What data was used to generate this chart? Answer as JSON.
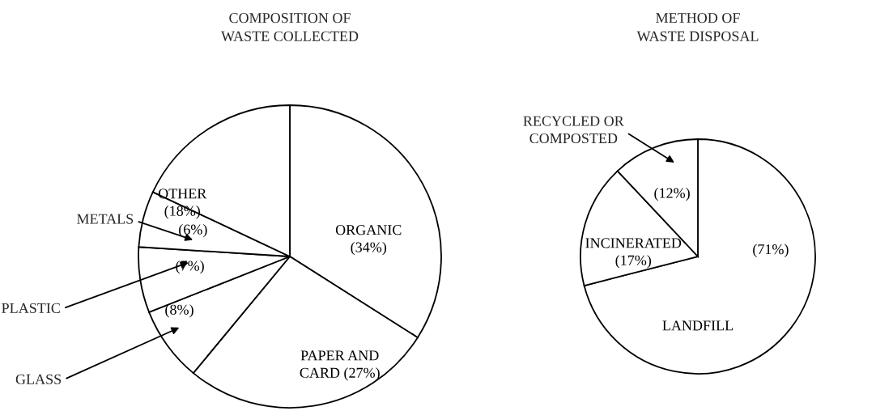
{
  "chart_data": [
    {
      "type": "pie",
      "title": "COMPOSITION OF\nWASTE COLLECTED",
      "categories": [
        "ORGANIC",
        "PAPER AND\nCARD",
        "GLASS",
        "PLASTIC",
        "METALS",
        "OTHER"
      ],
      "values": [
        34,
        27,
        8,
        7,
        6,
        18
      ],
      "colors": [
        "#ffffff",
        "#ffffff",
        "#ffffff",
        "#ffffff",
        "#ffffff",
        "#ffffff"
      ],
      "value_labels": [
        "(34%)",
        "(27%)",
        "(8%)",
        "(7%)",
        "(6%)",
        "(18%)"
      ]
    },
    {
      "type": "pie",
      "title": "METHOD OF\nWASTE DISPOSAL",
      "categories": [
        "LANDFILL",
        "INCINERATED",
        "RECYCLED OR\nCOMPOSTED"
      ],
      "values": [
        71,
        17,
        12
      ],
      "colors": [
        "#ffffff",
        "#ffffff",
        "#ffffff"
      ],
      "value_labels": [
        "(71%)",
        "(17%)",
        "(12%)"
      ]
    }
  ]
}
